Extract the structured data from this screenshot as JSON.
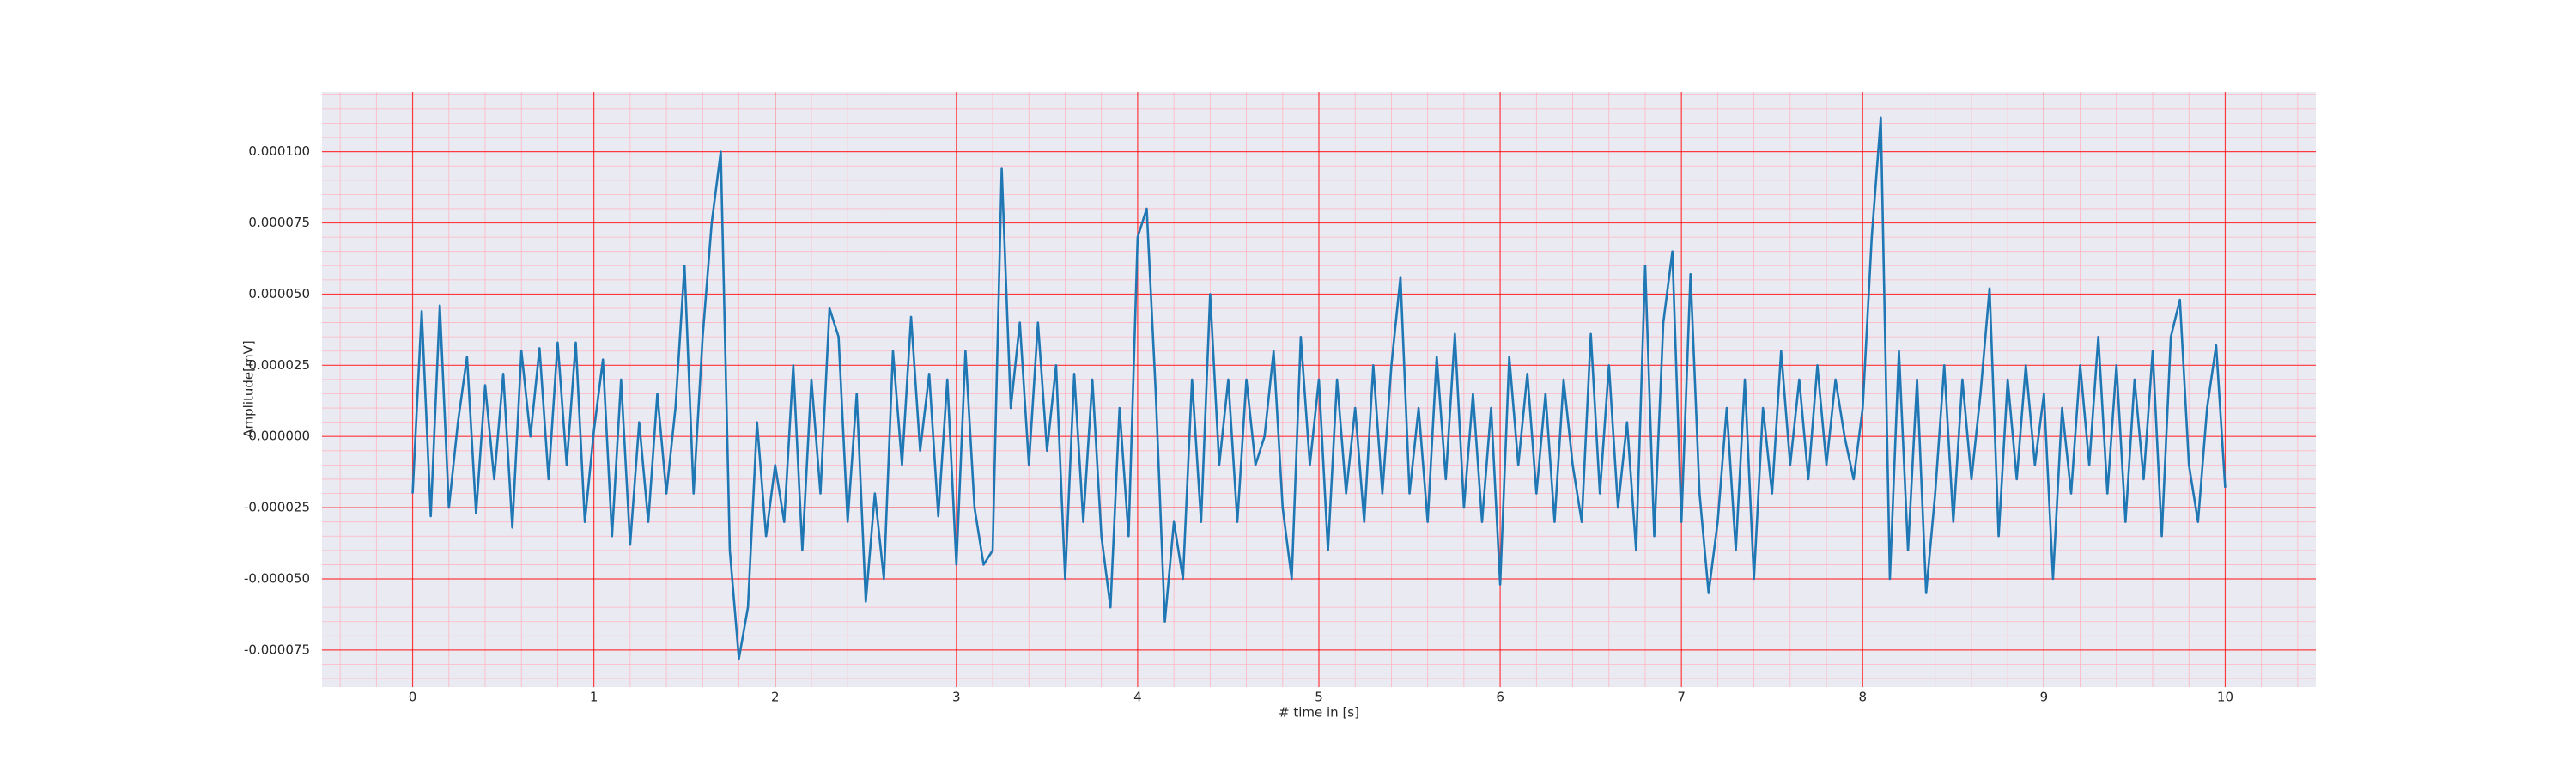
{
  "chart_data": {
    "type": "line",
    "xlabel": "# time in [s]",
    "ylabel": "Amplitude[mV]",
    "x": [
      0,
      0.05,
      0.1,
      0.15,
      0.2,
      0.25,
      0.3,
      0.35,
      0.4,
      0.45,
      0.5,
      0.55,
      0.6,
      0.65,
      0.7,
      0.75,
      0.8,
      0.85,
      0.9,
      0.95,
      1,
      1.05,
      1.1,
      1.15,
      1.2,
      1.25,
      1.3,
      1.35,
      1.4,
      1.45,
      1.5,
      1.55,
      1.6,
      1.65,
      1.7,
      1.75,
      1.8,
      1.85,
      1.9,
      1.95,
      2,
      2.05,
      2.1,
      2.15,
      2.2,
      2.25,
      2.3,
      2.35,
      2.4,
      2.45,
      2.5,
      2.55,
      2.6,
      2.65,
      2.7,
      2.75,
      2.8,
      2.85,
      2.9,
      2.95,
      3,
      3.05,
      3.1,
      3.15,
      3.2,
      3.25,
      3.3,
      3.35,
      3.4,
      3.45,
      3.5,
      3.55,
      3.6,
      3.65,
      3.7,
      3.75,
      3.8,
      3.85,
      3.9,
      3.95,
      4,
      4.05,
      4.1,
      4.15,
      4.2,
      4.25,
      4.3,
      4.35,
      4.4,
      4.45,
      4.5,
      4.55,
      4.6,
      4.65,
      4.7,
      4.75,
      4.8,
      4.85,
      4.9,
      4.95,
      5,
      5.05,
      5.1,
      5.15,
      5.2,
      5.25,
      5.3,
      5.35,
      5.4,
      5.45,
      5.5,
      5.55,
      5.6,
      5.65,
      5.7,
      5.75,
      5.8,
      5.85,
      5.9,
      5.95,
      6,
      6.05,
      6.1,
      6.15,
      6.2,
      6.25,
      6.3,
      6.35,
      6.4,
      6.45,
      6.5,
      6.55,
      6.6,
      6.65,
      6.7,
      6.75,
      6.8,
      6.85,
      6.9,
      6.95,
      7,
      7.05,
      7.1,
      7.15,
      7.2,
      7.25,
      7.3,
      7.35,
      7.4,
      7.45,
      7.5,
      7.55,
      7.6,
      7.65,
      7.7,
      7.75,
      7.8,
      7.85,
      7.9,
      7.95,
      8,
      8.05,
      8.1,
      8.15,
      8.2,
      8.25,
      8.3,
      8.35,
      8.4,
      8.45,
      8.5,
      8.55,
      8.6,
      8.65,
      8.7,
      8.75,
      8.8,
      8.85,
      8.9,
      8.95,
      9,
      9.05,
      9.1,
      9.15,
      9.2,
      9.25,
      9.3,
      9.35,
      9.4,
      9.45,
      9.5,
      9.55,
      9.6,
      9.65,
      9.7,
      9.75,
      9.8,
      9.85,
      9.9,
      9.95,
      10
    ],
    "series": [
      {
        "color": "#1f77b4",
        "values": [
          -2e-05,
          4.4e-05,
          -2.8e-05,
          4.6e-05,
          -2.5e-05,
          5e-06,
          2.8e-05,
          -2.7e-05,
          1.8e-05,
          -1.5e-05,
          2.2e-05,
          -3.2e-05,
          3e-05,
          0,
          3.1e-05,
          -1.5e-05,
          3.3e-05,
          -1e-05,
          3.3e-05,
          -3e-05,
          2e-06,
          2.7e-05,
          -3.5e-05,
          2e-05,
          -3.8e-05,
          5e-06,
          -3e-05,
          1.5e-05,
          -2e-05,
          1e-05,
          6e-05,
          -2e-05,
          3.5e-05,
          7.5e-05,
          0.0001,
          -4e-05,
          -7.8e-05,
          -6e-05,
          5e-06,
          -3.5e-05,
          -1e-05,
          -3e-05,
          2.5e-05,
          -4e-05,
          2e-05,
          -2e-05,
          4.5e-05,
          3.5e-05,
          -3e-05,
          1.5e-05,
          -5.8e-05,
          -2e-05,
          -5e-05,
          3e-05,
          -1e-05,
          4.2e-05,
          -5e-06,
          2.2e-05,
          -2.8e-05,
          2e-05,
          -4.5e-05,
          3e-05,
          -2.5e-05,
          -4.5e-05,
          -4e-05,
          9.4e-05,
          1e-05,
          4e-05,
          -1e-05,
          4e-05,
          -5e-06,
          2.5e-05,
          -5e-05,
          2.2e-05,
          -3e-05,
          2e-05,
          -3.5e-05,
          -6e-05,
          1e-05,
          -3.5e-05,
          7e-05,
          8e-05,
          1.5e-05,
          -6.5e-05,
          -3e-05,
          -5e-05,
          2e-05,
          -3e-05,
          5e-05,
          -1e-05,
          2e-05,
          -3e-05,
          2e-05,
          -1e-05,
          0,
          3e-05,
          -2.5e-05,
          -5e-05,
          3.5e-05,
          -1e-05,
          2e-05,
          -4e-05,
          2e-05,
          -2e-05,
          1e-05,
          -3e-05,
          2.5e-05,
          -2e-05,
          2.5e-05,
          5.6e-05,
          -2e-05,
          1e-05,
          -3e-05,
          2.8e-05,
          -1.5e-05,
          3.6e-05,
          -2.5e-05,
          1.5e-05,
          -3e-05,
          1e-05,
          -5.2e-05,
          2.8e-05,
          -1e-05,
          2.2e-05,
          -2e-05,
          1.5e-05,
          -3e-05,
          2e-05,
          -1e-05,
          -3e-05,
          3.6e-05,
          -2e-05,
          2.5e-05,
          -2.5e-05,
          5e-06,
          -4e-05,
          6e-05,
          -3.5e-05,
          4e-05,
          6.5e-05,
          -3e-05,
          5.7e-05,
          -2e-05,
          -5.5e-05,
          -3e-05,
          1e-05,
          -4e-05,
          2e-05,
          -5e-05,
          1e-05,
          -2e-05,
          3e-05,
          -1e-05,
          2e-05,
          -1.5e-05,
          2.5e-05,
          -1e-05,
          2e-05,
          0,
          -1.5e-05,
          1e-05,
          7e-05,
          0.000112,
          -5e-05,
          3e-05,
          -4e-05,
          2e-05,
          -5.5e-05,
          -2e-05,
          2.5e-05,
          -3e-05,
          2e-05,
          -1.5e-05,
          1.5e-05,
          5.2e-05,
          -3.5e-05,
          2e-05,
          -1.5e-05,
          2.5e-05,
          -1e-05,
          1.5e-05,
          -5e-05,
          1e-05,
          -2e-05,
          2.5e-05,
          -1e-05,
          3.5e-05,
          -2e-05,
          2.5e-05,
          -3e-05,
          2e-05,
          -1.5e-05,
          3e-05,
          -3.5e-05,
          3.5e-05,
          4.8e-05,
          -1e-05,
          -3e-05,
          1e-05,
          3.2e-05,
          -1.8e-05
        ]
      }
    ],
    "xlim": [
      -0.5,
      10.5
    ],
    "ylim": [
      -8.8e-05,
      0.000121
    ],
    "xticks": [
      0,
      1,
      2,
      3,
      4,
      5,
      6,
      7,
      8,
      9,
      10
    ],
    "yticks": [
      {
        "value": -7.5e-05,
        "label": "-0.000075"
      },
      {
        "value": -5e-05,
        "label": "-0.000050"
      },
      {
        "value": -2.5e-05,
        "label": "-0.000025"
      },
      {
        "value": 0,
        "label": "0.000000"
      },
      {
        "value": 2.5e-05,
        "label": "0.000025"
      },
      {
        "value": 5e-05,
        "label": "0.000050"
      },
      {
        "value": 7.5e-05,
        "label": "0.000075"
      },
      {
        "value": 0.0001,
        "label": "0.000100"
      }
    ],
    "grid": true,
    "grid_color": "#ff0000",
    "minor_grid": true,
    "minor_grid_color": "#ffb6c1",
    "background": "#eaeaf2"
  }
}
